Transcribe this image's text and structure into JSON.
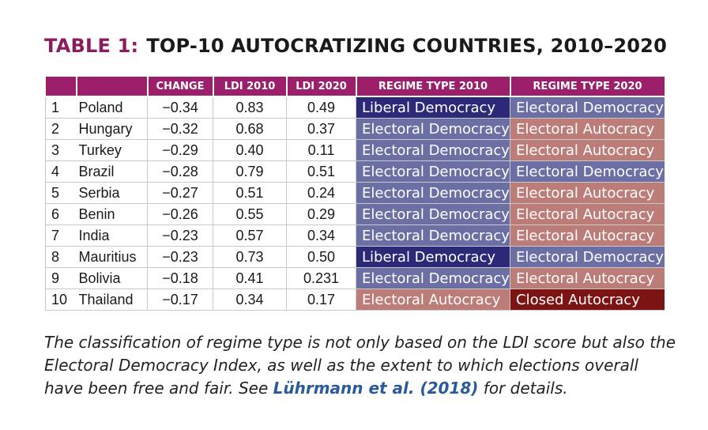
{
  "title": {
    "label": "TABLE 1:",
    "text": "TOP-10 AUTOCRATIZING COUNTRIES, 2010–2020"
  },
  "table": {
    "headers": [
      "",
      "",
      "CHANGE",
      "LDI 2010",
      "LDI 2020",
      "REGIME TYPE 2010",
      "REGIME TYPE 2020"
    ],
    "rows": [
      {
        "rank": "1",
        "country": "Poland",
        "change": "−0.34",
        "ldi2010": "0.83",
        "ldi2020": "0.49",
        "regime2010": "Liberal Democracy",
        "regime2020": "Electoral Democracy"
      },
      {
        "rank": "2",
        "country": "Hungary",
        "change": "−0.32",
        "ldi2010": "0.68",
        "ldi2020": "0.37",
        "regime2010": "Electoral Democracy",
        "regime2020": "Electoral Autocracy"
      },
      {
        "rank": "3",
        "country": "Turkey",
        "change": "−0.29",
        "ldi2010": "0.40",
        "ldi2020": "0.11",
        "regime2010": "Electoral Democracy",
        "regime2020": "Electoral Autocracy"
      },
      {
        "rank": "4",
        "country": "Brazil",
        "change": "−0.28",
        "ldi2010": "0.79",
        "ldi2020": "0.51",
        "regime2010": "Electoral Democracy",
        "regime2020": "Electoral Democracy"
      },
      {
        "rank": "5",
        "country": "Serbia",
        "change": "−0.27",
        "ldi2010": "0.51",
        "ldi2020": "0.24",
        "regime2010": "Electoral Democracy",
        "regime2020": "Electoral Autocracy"
      },
      {
        "rank": "6",
        "country": "Benin",
        "change": "−0.26",
        "ldi2010": "0.55",
        "ldi2020": "0.29",
        "regime2010": "Electoral Democracy",
        "regime2020": "Electoral Autocracy"
      },
      {
        "rank": "7",
        "country": "India",
        "change": "−0.23",
        "ldi2010": "0.57",
        "ldi2020": "0.34",
        "regime2010": "Electoral Democracy",
        "regime2020": "Electoral Autocracy"
      },
      {
        "rank": "8",
        "country": "Mauritius",
        "change": "−0.23",
        "ldi2010": "0.73",
        "ldi2020": "0.50",
        "regime2010": "Liberal Democracy",
        "regime2020": "Electoral Democracy"
      },
      {
        "rank": "9",
        "country": "Bolivia",
        "change": "−0.18",
        "ldi2010": "0.41",
        "ldi2020": "0.231",
        "regime2010": "Electoral Democracy",
        "regime2020": "Electoral Autocracy"
      },
      {
        "rank": "10",
        "country": "Thailand",
        "change": "−0.17",
        "ldi2010": "0.34",
        "ldi2020": "0.17",
        "regime2010": "Electoral Autocracy",
        "regime2020": "Closed Autocracy"
      }
    ]
  },
  "regime_colors": {
    "Liberal Democracy": "#2c2a78",
    "Electoral Democracy": "#6c6fa3",
    "Electoral Autocracy": "#bc7d79",
    "Closed Autocracy": "#7d1414"
  },
  "caption": {
    "text_before": "The classification of regime type is not only based on the LDI score but also the Electoral Democracy Index, as well as the extent to which elections overall have been free and fair. See ",
    "reference": "Lührmann et al. (2018)",
    "text_after": " for details."
  }
}
